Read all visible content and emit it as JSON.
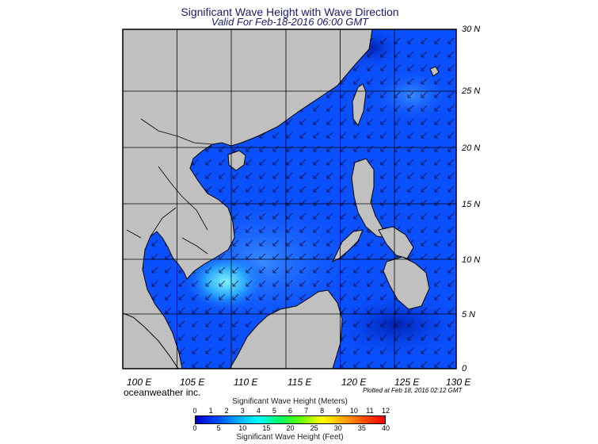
{
  "title": "Significant Wave Height with Wave Direction",
  "subtitle": "Valid For Feb-18-2016 06:00 GMT",
  "lat_labels": [
    "30 N",
    "25 N",
    "20 N",
    "15 N",
    "10 N",
    "5 N",
    "0"
  ],
  "lon_labels": [
    "100 E",
    "105 E",
    "110 E",
    "115 E",
    "120 E",
    "125 E",
    "130 E"
  ],
  "credit": "oceanweather inc.",
  "plotted_note": "Plotted at Feb 18, 2016 02:12 GMT",
  "colorbar": {
    "title_meters": "Significant Wave Height (Meters)",
    "title_feet": "Significant Wave Height (Feet)",
    "meters_ticks": [
      "0",
      "1",
      "2",
      "3",
      "4",
      "5",
      "6",
      "7",
      "8",
      "9",
      "10",
      "11",
      "12"
    ],
    "feet_ticks": [
      "0",
      "5",
      "10",
      "15",
      "20",
      "25",
      "30",
      "35",
      "40"
    ],
    "colors": [
      "#0000c8",
      "#0046ff",
      "#00aaff",
      "#00ffff",
      "#00ff64",
      "#64ff00",
      "#ffff00",
      "#ffaa00",
      "#ff5000",
      "#ff0000"
    ]
  },
  "map": {
    "lon_range": [
      100,
      130
    ],
    "lat_range": [
      0,
      30
    ],
    "land_color": "#c0c0c0",
    "sea_color": "#0a50ff",
    "wave_direction": "from northeast"
  }
}
